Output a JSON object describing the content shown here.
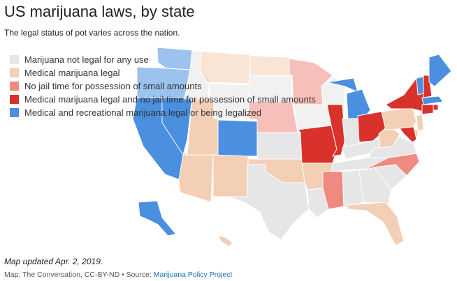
{
  "header": {
    "title": "US marijuana laws, by state",
    "subtitle": "The legal status of pot varies across the nation."
  },
  "colors": {
    "not_legal": "#e6e6e6",
    "medical": "#f3cfb5",
    "no_jail": "#f08a80",
    "medical_no_jail": "#d9312b",
    "recreational": "#4a8fe0",
    "border": "#ffffff"
  },
  "legend": [
    {
      "label": "Marijuana not legal for any use",
      "color": "#e6e6e6"
    },
    {
      "label": "Medical marijuana legal",
      "color": "#f3cfb5"
    },
    {
      "label": "No jail time for possession of small amounts",
      "color": "#f08a80"
    },
    {
      "label": "Medical marijuana legal and no jail time for possession of small amounts",
      "color": "#d9312b"
    },
    {
      "label": "Medical and recreational marijuana legal or being legalized",
      "color": "#4a8fe0"
    }
  ],
  "note": "Map updated Apr. 2, 2019.",
  "credit": {
    "prefix": "Map: The Conversation, CC-BY-ND • Source: ",
    "link_text": "Marijuana Policy Project"
  }
}
